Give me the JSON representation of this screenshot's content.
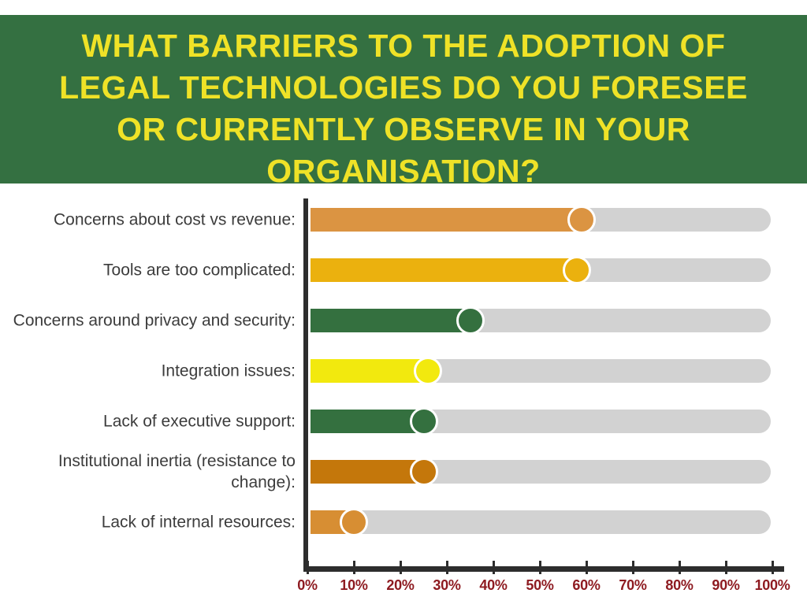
{
  "header": {
    "bg_color": "#347041",
    "text_color": "#EFE227",
    "title_lines": [
      "WHAT BARRIERS TO THE ADOPTION OF",
      "LEGAL TECHNOLOGIES DO YOU FORESEE",
      "OR CURRENTLY OBSERVE IN YOUR",
      "ORGANISATION?"
    ]
  },
  "chart_data": {
    "type": "bar",
    "orientation": "horizontal",
    "title": "What barriers to the adoption of legal technologies do you foresee or currently observe in your organisation?",
    "categories": [
      "Concerns about cost vs revenue:",
      "Tools are too complicated:",
      "Concerns around privacy and security:",
      "Integration issues:",
      "Lack of executive support:",
      "Institutional inertia (resistance to change):",
      "Lack of internal resources:"
    ],
    "values": [
      59,
      58,
      35,
      26,
      25,
      25,
      10
    ],
    "value_unit": "%",
    "xlim": [
      0,
      100
    ],
    "x_tick_labels": [
      "0%",
      "10%",
      "20%",
      "30%",
      "40%",
      "50%",
      "60%",
      "70%",
      "80%",
      "90%",
      "100%"
    ],
    "grid": false,
    "legend": "none",
    "marker": "circle-at-value-end",
    "colors": {
      "bars": [
        "#DB9442",
        "#EBB10E",
        "#34703F",
        "#F2E90E",
        "#34703F",
        "#C4770B",
        "#D78E33"
      ],
      "track": "#D2D2D2",
      "axis": "#2D2D2D",
      "tick_labels": "#8E1B21",
      "category_labels": "#3C3C3C"
    }
  }
}
